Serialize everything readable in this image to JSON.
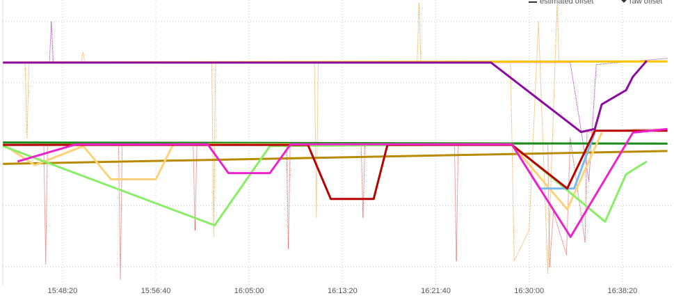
{
  "chart_data": {
    "type": "line",
    "xlim": [
      56580,
      60165
    ],
    "ylim": [
      -2.3,
      2.35
    ],
    "xticks": [
      {
        "value": 56900,
        "label": "15:48:20"
      },
      {
        "value": 57400,
        "label": "15:56:40"
      },
      {
        "value": 57900,
        "label": "16:05:00"
      },
      {
        "value": 58400,
        "label": "16:13:20"
      },
      {
        "value": 58900,
        "label": "16:21:40"
      },
      {
        "value": 59400,
        "label": "16:30:00"
      },
      {
        "value": 59900,
        "label": "16:38:20"
      }
    ],
    "yticks": [
      -2,
      -1,
      0,
      1,
      2
    ],
    "grid": true,
    "legend": [
      "estimated offset",
      "raw offset"
    ],
    "series": [
      {
        "color": "#e04848",
        "style": "dotted",
        "x": [
          56581,
          56800,
          56810,
          56820,
          57200,
          57210,
          57220,
          57600,
          57610,
          57620,
          58100,
          58110,
          58120,
          58500,
          58510,
          58520,
          59000,
          59010,
          59020,
          59500,
          59510,
          59530,
          59600,
          59620,
          59700,
          59710,
          60000,
          60141
        ],
        "values": [
          0,
          0,
          -1.95,
          0,
          0,
          -2.2,
          0,
          0,
          -1.4,
          0,
          0,
          -1.7,
          0,
          0,
          -1.2,
          0,
          0,
          -1.9,
          0,
          0,
          -2.0,
          -1.1,
          -1.8,
          0.1,
          -1.6,
          0.2,
          0.25,
          0.25
        ]
      },
      {
        "color": "#f0a030",
        "style": "dotted",
        "x": [
          56581,
          56700,
          56710,
          56720,
          57000,
          57010,
          57020,
          57700,
          57710,
          57720,
          58250,
          58260,
          58270,
          58800,
          58810,
          58820,
          59300,
          59320,
          59400,
          59450,
          59500,
          59550,
          59560,
          60141
        ],
        "values": [
          1.33,
          1.33,
          0.1,
          1.33,
          1.33,
          1.5,
          1.33,
          1.33,
          -1.5,
          1.33,
          1.33,
          -1.2,
          1.33,
          1.33,
          2.3,
          1.33,
          1.33,
          -1.9,
          -1.4,
          2.0,
          -2.1,
          2.3,
          1.35,
          1.35
        ]
      },
      {
        "color": "#a020b0",
        "style": "dotted",
        "x": [
          56581,
          56830,
          56840,
          56850,
          59620,
          59680,
          59720,
          59760,
          60141
        ],
        "values": [
          1.33,
          1.33,
          2.0,
          1.33,
          1.33,
          0.2,
          -0.6,
          1.3,
          1.4
        ]
      },
      {
        "color": "#ffc300",
        "style": "solid",
        "x": [
          56581,
          60141
        ],
        "values": [
          1.33,
          1.35
        ]
      },
      {
        "color": "#b88a00",
        "style": "solid",
        "x": [
          56581,
          60141
        ],
        "values": [
          -0.32,
          -0.11
        ]
      },
      {
        "color": "#1a8c1a",
        "style": "solid",
        "x": [
          56581,
          60141
        ],
        "values": [
          0.03,
          0.01
        ]
      },
      {
        "color": "#ffd27a",
        "style": "solid",
        "x": [
          56581,
          56752,
          57011,
          57159,
          57400,
          57493,
          59307,
          59604,
          59789
        ],
        "values": [
          0,
          -0.34,
          -0.03,
          -0.57,
          -0.57,
          0,
          0,
          -1.06,
          0.19
        ]
      },
      {
        "color": "#88ee66",
        "style": "solid",
        "x": [
          56581,
          57715,
          58011,
          59307,
          59807,
          59919,
          60030
        ],
        "values": [
          -0.03,
          -1.32,
          -0.03,
          0,
          -1.26,
          -0.49,
          -0.28
        ]
      },
      {
        "color": "#77bbee",
        "style": "solid",
        "x": [
          59307,
          59456,
          59641,
          59752
        ],
        "values": [
          0,
          -0.72,
          -0.72,
          0.19
        ]
      },
      {
        "color": "#b80000",
        "style": "solid",
        "x": [
          56581,
          58215,
          58337,
          58567,
          58641,
          59307,
          59604,
          59752,
          60141
        ],
        "values": [
          -0.01,
          -0.01,
          -0.89,
          -0.89,
          -0.01,
          -0.01,
          -0.72,
          0.22,
          0.22
        ]
      },
      {
        "color": "#ee22cc",
        "style": "solid",
        "x": [
          56659,
          56974,
          57678,
          57789,
          58011,
          58122,
          59307,
          59622,
          59956,
          60141
        ],
        "values": [
          -0.28,
          0,
          0,
          -0.47,
          -0.47,
          0,
          0,
          -1.51,
          0.19,
          0.25
        ]
      },
      {
        "color": "#8b0aa0",
        "style": "solid",
        "x": [
          56581,
          59196,
          59678,
          59752,
          59789,
          59919,
          59956,
          60030
        ],
        "values": [
          1.33,
          1.33,
          0.2,
          0.25,
          0.65,
          0.88,
          1.1,
          1.36
        ]
      }
    ]
  }
}
